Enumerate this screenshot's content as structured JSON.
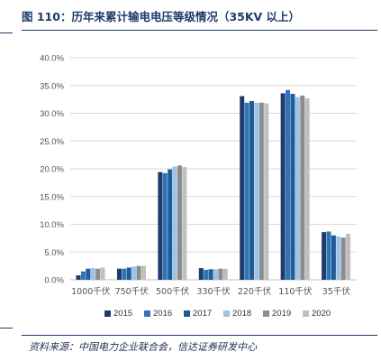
{
  "header": {
    "title": "图 110：历年来累计输电电压等级情况（35KV 以上）"
  },
  "footer": {
    "source": "资料来源：中国电力企业联合会，信达证券研发中心"
  },
  "colors": {
    "title": "#1f3b6b",
    "rule": "#1f3b6b",
    "grid": "#d9d9d9",
    "axis_text": "#555555"
  },
  "chart_data": {
    "type": "bar",
    "categories": [
      "1000千伏",
      "750千伏",
      "500千伏",
      "330千伏",
      "220千伏",
      "110千伏",
      "35千伏"
    ],
    "y_ticks": [
      "0.0%",
      "5.0%",
      "10.0%",
      "15.0%",
      "20.0%",
      "25.0%",
      "30.0%",
      "35.0%",
      "40.0%"
    ],
    "ylim": [
      0,
      40
    ],
    "y_unit": "%",
    "grid": true,
    "legend_position": "bottom",
    "series": [
      {
        "name": "2015",
        "color": "#1f3b6e",
        "values": [
          0.8,
          2.0,
          19.4,
          2.1,
          33.1,
          33.6,
          8.6
        ]
      },
      {
        "name": "2016",
        "color": "#2e75b6",
        "values": [
          1.5,
          2.0,
          19.2,
          1.8,
          31.9,
          34.2,
          8.7
        ]
      },
      {
        "name": "2017",
        "color": "#1f5c99",
        "values": [
          2.0,
          2.2,
          19.9,
          1.9,
          32.2,
          33.5,
          8.0
        ]
      },
      {
        "name": "2018",
        "color": "#9dc3e6",
        "values": [
          2.1,
          2.4,
          20.4,
          1.9,
          31.9,
          32.9,
          7.8
        ]
      },
      {
        "name": "2019",
        "color": "#8c8c8c",
        "values": [
          2.0,
          2.5,
          20.6,
          2.0,
          31.9,
          33.2,
          7.6
        ]
      },
      {
        "name": "2020",
        "color": "#bfbfbf",
        "values": [
          2.2,
          2.5,
          20.3,
          2.0,
          31.8,
          32.7,
          8.3
        ]
      }
    ]
  }
}
